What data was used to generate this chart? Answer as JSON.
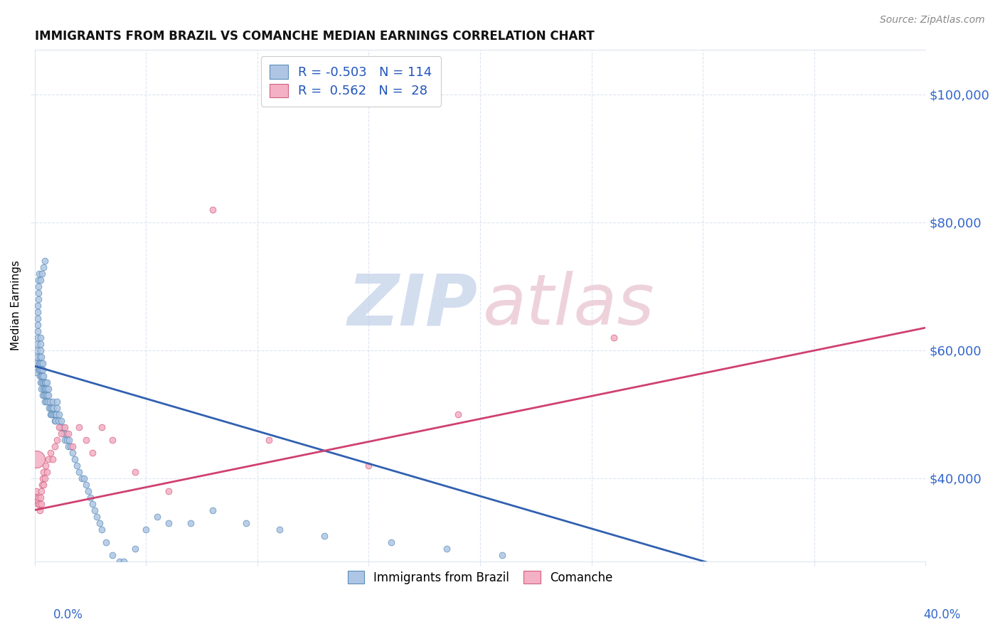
{
  "title": "IMMIGRANTS FROM BRAZIL VS COMANCHE MEDIAN EARNINGS CORRELATION CHART",
  "source": "Source: ZipAtlas.com",
  "ylabel": "Median Earnings",
  "y_tick_labels": [
    "$40,000",
    "$60,000",
    "$80,000",
    "$100,000"
  ],
  "y_tick_values": [
    40000,
    60000,
    80000,
    100000
  ],
  "xlim": [
    0.0,
    40.0
  ],
  "ylim": [
    27000,
    107000
  ],
  "blue_fill": "#aec6e4",
  "blue_edge": "#5b8db8",
  "pink_fill": "#f4b0c4",
  "pink_edge": "#d06080",
  "blue_line": "#3060b0",
  "pink_line": "#d04070",
  "grid_color": "#dde4f0",
  "watermark_zip": "#c0d0e8",
  "watermark_atlas": "#e8c0cc",
  "blue_reg_x0": 0.0,
  "blue_reg_y0": 57500,
  "blue_reg_x1": 31.0,
  "blue_reg_y1": 26000,
  "pink_reg_x0": 0.0,
  "pink_reg_y0": 35000,
  "pink_reg_x1": 40.0,
  "pink_reg_y1": 63500,
  "blue_x": [
    0.05,
    0.07,
    0.08,
    0.09,
    0.1,
    0.1,
    0.12,
    0.12,
    0.13,
    0.15,
    0.15,
    0.15,
    0.16,
    0.17,
    0.18,
    0.18,
    0.19,
    0.2,
    0.2,
    0.22,
    0.22,
    0.23,
    0.24,
    0.25,
    0.25,
    0.26,
    0.27,
    0.28,
    0.28,
    0.3,
    0.3,
    0.31,
    0.32,
    0.33,
    0.35,
    0.35,
    0.37,
    0.38,
    0.4,
    0.4,
    0.42,
    0.44,
    0.45,
    0.46,
    0.48,
    0.5,
    0.5,
    0.52,
    0.54,
    0.55,
    0.55,
    0.57,
    0.6,
    0.62,
    0.65,
    0.68,
    0.7,
    0.72,
    0.75,
    0.78,
    0.8,
    0.82,
    0.85,
    0.88,
    0.9,
    0.92,
    0.95,
    0.98,
    1.0,
    1.0,
    1.05,
    1.1,
    1.15,
    1.2,
    1.25,
    1.3,
    1.35,
    1.4,
    1.45,
    1.5,
    1.55,
    1.6,
    1.7,
    1.8,
    1.9,
    2.0,
    2.1,
    2.2,
    2.3,
    2.4,
    2.5,
    2.6,
    2.7,
    2.8,
    2.9,
    3.0,
    3.2,
    3.5,
    3.8,
    4.0,
    4.5,
    5.0,
    5.5,
    6.0,
    7.0,
    8.0,
    9.5,
    11.0,
    13.0,
    16.0,
    18.5,
    21.0,
    0.25,
    0.32,
    0.38,
    0.45
  ],
  "blue_y": [
    57000,
    56500,
    58000,
    59000,
    60000,
    61000,
    62000,
    63000,
    64000,
    65000,
    66000,
    67000,
    68000,
    69000,
    70000,
    71000,
    72000,
    57000,
    58000,
    56000,
    57000,
    58000,
    59000,
    60000,
    61000,
    62000,
    55000,
    56000,
    57000,
    58000,
    59000,
    54000,
    55000,
    56000,
    57000,
    58000,
    53000,
    54000,
    55000,
    56000,
    53000,
    54000,
    55000,
    52000,
    53000,
    54000,
    55000,
    52000,
    53000,
    54000,
    55000,
    52000,
    53000,
    54000,
    51000,
    52000,
    50000,
    51000,
    50000,
    51000,
    52000,
    50000,
    51000,
    50000,
    49000,
    50000,
    49000,
    50000,
    51000,
    52000,
    49000,
    50000,
    48000,
    49000,
    48000,
    47000,
    46000,
    47000,
    46000,
    45000,
    46000,
    45000,
    44000,
    43000,
    42000,
    41000,
    40000,
    40000,
    39000,
    38000,
    37000,
    36000,
    35000,
    34000,
    33000,
    32000,
    30000,
    28000,
    27000,
    27000,
    29000,
    32000,
    34000,
    33000,
    33000,
    35000,
    33000,
    32000,
    31000,
    30000,
    29000,
    28000,
    71000,
    72000,
    73000,
    74000
  ],
  "blue_sizes": [
    40,
    40,
    40,
    40,
    40,
    40,
    40,
    40,
    40,
    40,
    40,
    40,
    40,
    40,
    40,
    40,
    40,
    40,
    40,
    40,
    40,
    40,
    40,
    40,
    40,
    40,
    40,
    40,
    40,
    40,
    40,
    40,
    40,
    40,
    40,
    40,
    40,
    40,
    40,
    40,
    40,
    40,
    40,
    40,
    40,
    40,
    40,
    40,
    40,
    40,
    40,
    40,
    40,
    40,
    40,
    40,
    40,
    40,
    40,
    40,
    40,
    40,
    40,
    40,
    40,
    40,
    40,
    40,
    40,
    40,
    40,
    40,
    40,
    40,
    40,
    40,
    40,
    40,
    40,
    40,
    40,
    40,
    40,
    40,
    40,
    40,
    40,
    40,
    40,
    40,
    40,
    40,
    40,
    40,
    40,
    40,
    40,
    40,
    40,
    40,
    40,
    40,
    40,
    40,
    40,
    40,
    40,
    40,
    40,
    40,
    40,
    40,
    40,
    40,
    40,
    40
  ],
  "pink_x": [
    0.07,
    0.1,
    0.12,
    0.15,
    0.18,
    0.2,
    0.22,
    0.25,
    0.28,
    0.3,
    0.33,
    0.35,
    0.38,
    0.4,
    0.45,
    0.5,
    0.55,
    0.6,
    0.7,
    0.8,
    0.9,
    1.0,
    1.1,
    1.2,
    1.35,
    1.5,
    1.7,
    2.0,
    2.3,
    2.6,
    3.0,
    3.5,
    4.5,
    6.0,
    8.0,
    10.5,
    15.0,
    19.0,
    26.0
  ],
  "pink_y": [
    38000,
    37000,
    36000,
    36500,
    37000,
    36000,
    35000,
    37000,
    36000,
    38000,
    39000,
    40000,
    39000,
    41000,
    40000,
    42000,
    41000,
    43000,
    44000,
    43000,
    45000,
    46000,
    48000,
    47000,
    48000,
    47000,
    45000,
    48000,
    46000,
    44000,
    48000,
    46000,
    41000,
    38000,
    82000,
    46000,
    42000,
    50000,
    62000
  ],
  "pink_sizes": [
    40,
    40,
    40,
    40,
    40,
    40,
    40,
    40,
    40,
    40,
    40,
    40,
    40,
    40,
    40,
    40,
    40,
    40,
    40,
    40,
    40,
    40,
    40,
    40,
    40,
    40,
    40,
    40,
    40,
    40,
    40,
    40,
    40,
    40,
    40,
    40,
    40,
    40,
    40
  ],
  "large_pink_x": 0.06,
  "large_pink_y": 43000,
  "large_pink_size": 300
}
